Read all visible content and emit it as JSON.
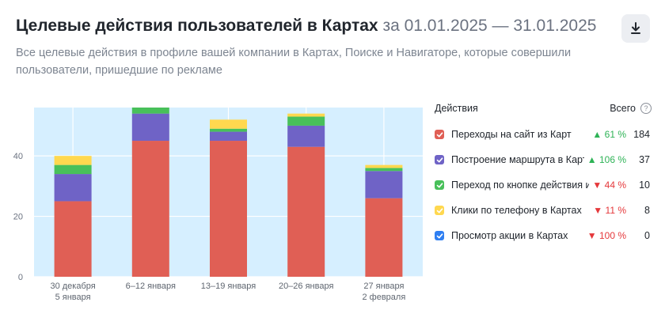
{
  "header": {
    "title": "Целевые действия пользователей в Картах",
    "date_range": "за 01.01.2025 — 31.01.2025",
    "subtitle": "Все целевые действия в профиле вашей компании в Картах, Поиске и Навигаторе, которые совершили пользователи, пришедшие по рекламе",
    "download_icon": "download-icon"
  },
  "legend": {
    "title": "Действия",
    "total_label": "Всего",
    "help_icon": "question-circle-icon",
    "items": [
      {
        "label": "Переходы на сайт из Карт",
        "color": "#e05f55",
        "trend": "up",
        "arrow": "▲",
        "change": "61 %",
        "total": "184"
      },
      {
        "label": "Построение маршрута в Картах",
        "color": "#6f63c6",
        "trend": "up",
        "arrow": "▲",
        "change": "106 %",
        "total": "37"
      },
      {
        "label": "Переход по кнопке действия из Карт",
        "color": "#48c05a",
        "trend": "down",
        "arrow": "▼",
        "change": "44 %",
        "total": "10"
      },
      {
        "label": "Клики по телефону в Картах",
        "color": "#ffd84f",
        "trend": "down",
        "arrow": "▼",
        "change": "11 %",
        "total": "8"
      },
      {
        "label": "Просмотр акции в Картах",
        "color": "#2f7ff2",
        "trend": "down",
        "arrow": "▼",
        "change": "100 %",
        "total": "0"
      }
    ]
  },
  "chart_data": {
    "type": "bar",
    "stacked": true,
    "categories": [
      [
        "30 декабря",
        "5 января"
      ],
      [
        "6–12 января"
      ],
      [
        "13–19 января"
      ],
      [
        "20–26 января"
      ],
      [
        "27 января",
        "2 февраля"
      ]
    ],
    "series": [
      {
        "name": "Переходы на сайт из Карт",
        "color": "#e05f55",
        "values": [
          25,
          45,
          45,
          43,
          26
        ]
      },
      {
        "name": "Построение маршрута в Картах",
        "color": "#6f63c6",
        "values": [
          9,
          9,
          3,
          7,
          9
        ]
      },
      {
        "name": "Переход по кнопке действия из Карт",
        "color": "#48c05a",
        "values": [
          3,
          2,
          1,
          3,
          1
        ]
      },
      {
        "name": "Клики по телефону в Картах",
        "color": "#ffd84f",
        "values": [
          3,
          0,
          3,
          1,
          1
        ]
      },
      {
        "name": "Просмотр акции в Картах",
        "color": "#2f7ff2",
        "values": [
          0,
          0,
          0,
          0,
          0
        ]
      }
    ],
    "yticks": [
      0,
      20,
      40
    ],
    "ylim": [
      0,
      56
    ],
    "grid": true,
    "plot_background": "#d6efff"
  }
}
